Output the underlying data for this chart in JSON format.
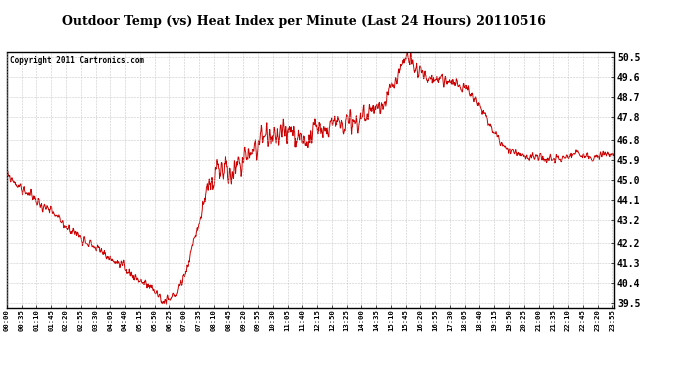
{
  "title": "Outdoor Temp (vs) Heat Index per Minute (Last 24 Hours) 20110516",
  "copyright": "Copyright 2011 Cartronics.com",
  "line_color": "#cc0000",
  "bg_color": "#ffffff",
  "grid_color": "#bbbbbb",
  "yticks": [
    39.5,
    40.4,
    41.3,
    42.2,
    43.2,
    44.1,
    45.0,
    45.9,
    46.8,
    47.8,
    48.7,
    49.6,
    50.5
  ],
  "ylim": [
    39.3,
    50.7
  ],
  "xtick_labels": [
    "00:00",
    "00:35",
    "01:10",
    "01:45",
    "02:20",
    "02:55",
    "03:30",
    "04:05",
    "04:40",
    "05:15",
    "05:50",
    "06:25",
    "07:00",
    "07:35",
    "08:10",
    "08:45",
    "09:20",
    "09:55",
    "10:30",
    "11:05",
    "11:40",
    "12:15",
    "12:50",
    "13:25",
    "14:00",
    "14:35",
    "15:10",
    "15:45",
    "16:20",
    "16:55",
    "17:30",
    "18:05",
    "18:40",
    "19:15",
    "19:50",
    "20:25",
    "21:00",
    "21:35",
    "22:10",
    "22:45",
    "23:20",
    "23:55"
  ],
  "key_times_frac": [
    0.0,
    0.01,
    0.02,
    0.03,
    0.04,
    0.052,
    0.06,
    0.07,
    0.08,
    0.09,
    0.1,
    0.11,
    0.12,
    0.13,
    0.14,
    0.15,
    0.16,
    0.17,
    0.18,
    0.19,
    0.2,
    0.21,
    0.22,
    0.23,
    0.24,
    0.25,
    0.255,
    0.26,
    0.265,
    0.27,
    0.275,
    0.28,
    0.285,
    0.29,
    0.295,
    0.3,
    0.305,
    0.31,
    0.315,
    0.32,
    0.325,
    0.33,
    0.34,
    0.35,
    0.36,
    0.37,
    0.38,
    0.39,
    0.4,
    0.41,
    0.42,
    0.43,
    0.44,
    0.45,
    0.46,
    0.47,
    0.48,
    0.49,
    0.5,
    0.51,
    0.52,
    0.53,
    0.54,
    0.55,
    0.56,
    0.57,
    0.58,
    0.59,
    0.6,
    0.61,
    0.62,
    0.63,
    0.635,
    0.64,
    0.645,
    0.65,
    0.655,
    0.66,
    0.665,
    0.67,
    0.68,
    0.69,
    0.7,
    0.71,
    0.72,
    0.73,
    0.74,
    0.75,
    0.76,
    0.77,
    0.78,
    0.79,
    0.8,
    0.81,
    0.82,
    0.83,
    0.84,
    0.85,
    0.86,
    0.87,
    0.88,
    0.89,
    0.9,
    0.91,
    0.92,
    0.93,
    0.94,
    0.95,
    0.96,
    0.97,
    0.98,
    0.99,
    1.0
  ],
  "key_temps": [
    45.2,
    45.0,
    44.7,
    44.5,
    44.3,
    44.0,
    43.8,
    43.6,
    43.4,
    43.1,
    42.9,
    42.7,
    42.5,
    42.3,
    42.1,
    41.9,
    41.7,
    41.5,
    41.3,
    41.1,
    40.9,
    40.7,
    40.5,
    40.3,
    40.1,
    39.9,
    39.6,
    39.55,
    39.6,
    39.7,
    39.8,
    40.0,
    40.3,
    40.6,
    41.0,
    41.4,
    42.0,
    42.5,
    43.0,
    43.5,
    44.0,
    44.5,
    45.0,
    45.4,
    45.5,
    45.2,
    45.6,
    46.0,
    46.3,
    46.5,
    46.7,
    46.8,
    46.9,
    47.0,
    47.1,
    47.2,
    47.0,
    46.8,
    46.9,
    47.1,
    47.3,
    47.2,
    47.4,
    47.5,
    47.6,
    47.5,
    47.7,
    47.9,
    48.1,
    48.3,
    48.5,
    48.9,
    49.2,
    49.5,
    49.8,
    50.1,
    50.4,
    50.5,
    50.3,
    50.0,
    49.7,
    49.6,
    49.5,
    49.5,
    49.5,
    49.4,
    49.3,
    49.2,
    49.0,
    48.7,
    48.2,
    47.7,
    47.2,
    46.8,
    46.5,
    46.3,
    46.2,
    46.1,
    46.0,
    46.0,
    46.0,
    45.9,
    45.9,
    46.0,
    46.0,
    46.1,
    46.2,
    46.1,
    46.0,
    46.0,
    46.1,
    46.2,
    46.2
  ],
  "noise_seed": 99,
  "noise_std": 0.18,
  "noise_smooth": 3
}
